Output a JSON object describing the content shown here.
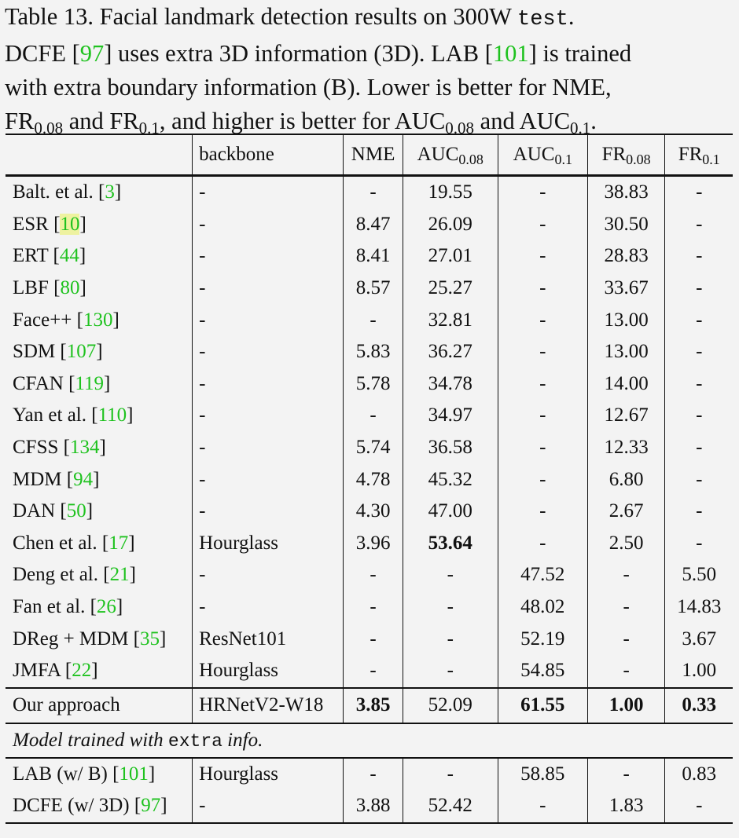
{
  "caption": {
    "l1_a": "Table 13. Facial landmark detection results on 300W ",
    "l1_mono": "test",
    "l1_b": ".",
    "l2_a": "DCFE [",
    "l2_cite1": "97",
    "l2_b": "] uses extra 3D information (3D). LAB [",
    "l2_cite2": "101",
    "l2_c": "] is trained",
    "l3": "with extra boundary information (B). Lower is better for NME,",
    "l4_fr": "FR",
    "l4_s1": "0.08",
    "l4_a": " and FR",
    "l4_s2": "0.1",
    "l4_b": ", and higher is better for AUC",
    "l4_s3": "0.08",
    "l4_c": " and AUC",
    "l4_s4": "0.1",
    "l4_d": "."
  },
  "header": {
    "backbone": "backbone",
    "nme": "NME",
    "auc": "AUC",
    "auc008_sub": "0.08",
    "auc01_sub": "0.1",
    "fr": "FR",
    "fr008_sub": "0.08",
    "fr01_sub": "0.1"
  },
  "rows": [
    {
      "name": "Balt. et al. [",
      "cite": "3",
      "backbone": "-",
      "nme": "-",
      "auc008": "19.55",
      "auc01": "-",
      "fr008": "38.83",
      "fr01": "-"
    },
    {
      "name": "ESR [",
      "cite": "10",
      "backbone": "-",
      "nme": "8.47",
      "auc008": "26.09",
      "auc01": "-",
      "fr008": "30.50",
      "fr01": "-"
    },
    {
      "name": "ERT [",
      "cite": "44",
      "backbone": "-",
      "nme": "8.41",
      "auc008": "27.01",
      "auc01": "-",
      "fr008": "28.83",
      "fr01": "-"
    },
    {
      "name": "LBF [",
      "cite": "80",
      "backbone": "-",
      "nme": "8.57",
      "auc008": "25.27",
      "auc01": "-",
      "fr008": "33.67",
      "fr01": "-"
    },
    {
      "name": "Face++ [",
      "cite": "130",
      "backbone": "-",
      "nme": "-",
      "auc008": "32.81",
      "auc01": "-",
      "fr008": "13.00",
      "fr01": "-"
    },
    {
      "name": "SDM [",
      "cite": "107",
      "backbone": "-",
      "nme": "5.83",
      "auc008": "36.27",
      "auc01": "-",
      "fr008": "13.00",
      "fr01": "-"
    },
    {
      "name": "CFAN [",
      "cite": "119",
      "backbone": "-",
      "nme": "5.78",
      "auc008": "34.78",
      "auc01": "-",
      "fr008": "14.00",
      "fr01": "-"
    },
    {
      "name": "Yan et al. [",
      "cite": "110",
      "backbone": "-",
      "nme": "-",
      "auc008": "34.97",
      "auc01": "-",
      "fr008": "12.67",
      "fr01": "-"
    },
    {
      "name": "CFSS [",
      "cite": "134",
      "backbone": "-",
      "nme": "5.74",
      "auc008": "36.58",
      "auc01": "-",
      "fr008": "12.33",
      "fr01": "-"
    },
    {
      "name": "MDM [",
      "cite": "94",
      "backbone": "-",
      "nme": "4.78",
      "auc008": "45.32",
      "auc01": "-",
      "fr008": "6.80",
      "fr01": "-"
    },
    {
      "name": "DAN [",
      "cite": "50",
      "backbone": "-",
      "nme": "4.30",
      "auc008": "47.00",
      "auc01": "-",
      "fr008": "2.67",
      "fr01": "-"
    },
    {
      "name": "Chen et al. [",
      "cite": "17",
      "backbone": "Hourglass",
      "nme": "3.96",
      "auc008": "53.64",
      "auc01": "-",
      "fr008": "2.50",
      "fr01": "-"
    },
    {
      "name": "Deng et al. [",
      "cite": "21",
      "backbone": "-",
      "nme": "-",
      "auc008": "-",
      "auc01": "47.52",
      "fr008": "-",
      "fr01": "5.50"
    },
    {
      "name": "Fan et al. [",
      "cite": "26",
      "backbone": "-",
      "nme": "-",
      "auc008": "-",
      "auc01": "48.02",
      "fr008": "-",
      "fr01": "14.83"
    },
    {
      "name": "DReg + MDM [",
      "cite": "35",
      "backbone": "ResNet101",
      "nme": "-",
      "auc008": "-",
      "auc01": "52.19",
      "fr008": "-",
      "fr01": "3.67"
    },
    {
      "name": "JMFA [",
      "cite": "22",
      "backbone": "Hourglass",
      "nme": "-",
      "auc008": "-",
      "auc01": "54.85",
      "fr008": "-",
      "fr01": "1.00"
    }
  ],
  "ours": {
    "name": "Our approach",
    "backbone": "HRNetV2-W18",
    "nme": "3.85",
    "auc008": "52.09",
    "auc01": "61.55",
    "fr008": "1.00",
    "fr01": "0.33"
  },
  "note": {
    "a": "Model trained with ",
    "mono": "extra",
    "b": " info."
  },
  "extra_rows": [
    {
      "name": "LAB (w/ B) [",
      "cite": "101",
      "backbone": "Hourglass",
      "nme": "-",
      "auc008": "-",
      "auc01": "58.85",
      "fr008": "-",
      "fr01": "0.83"
    },
    {
      "name": "DCFE (w/ 3D) [",
      "cite": "97",
      "backbone": "-",
      "nme": "3.88",
      "auc008": "52.42",
      "auc01": "-",
      "fr008": "1.83",
      "fr01": "-"
    }
  ],
  "close_bracket": "]"
}
